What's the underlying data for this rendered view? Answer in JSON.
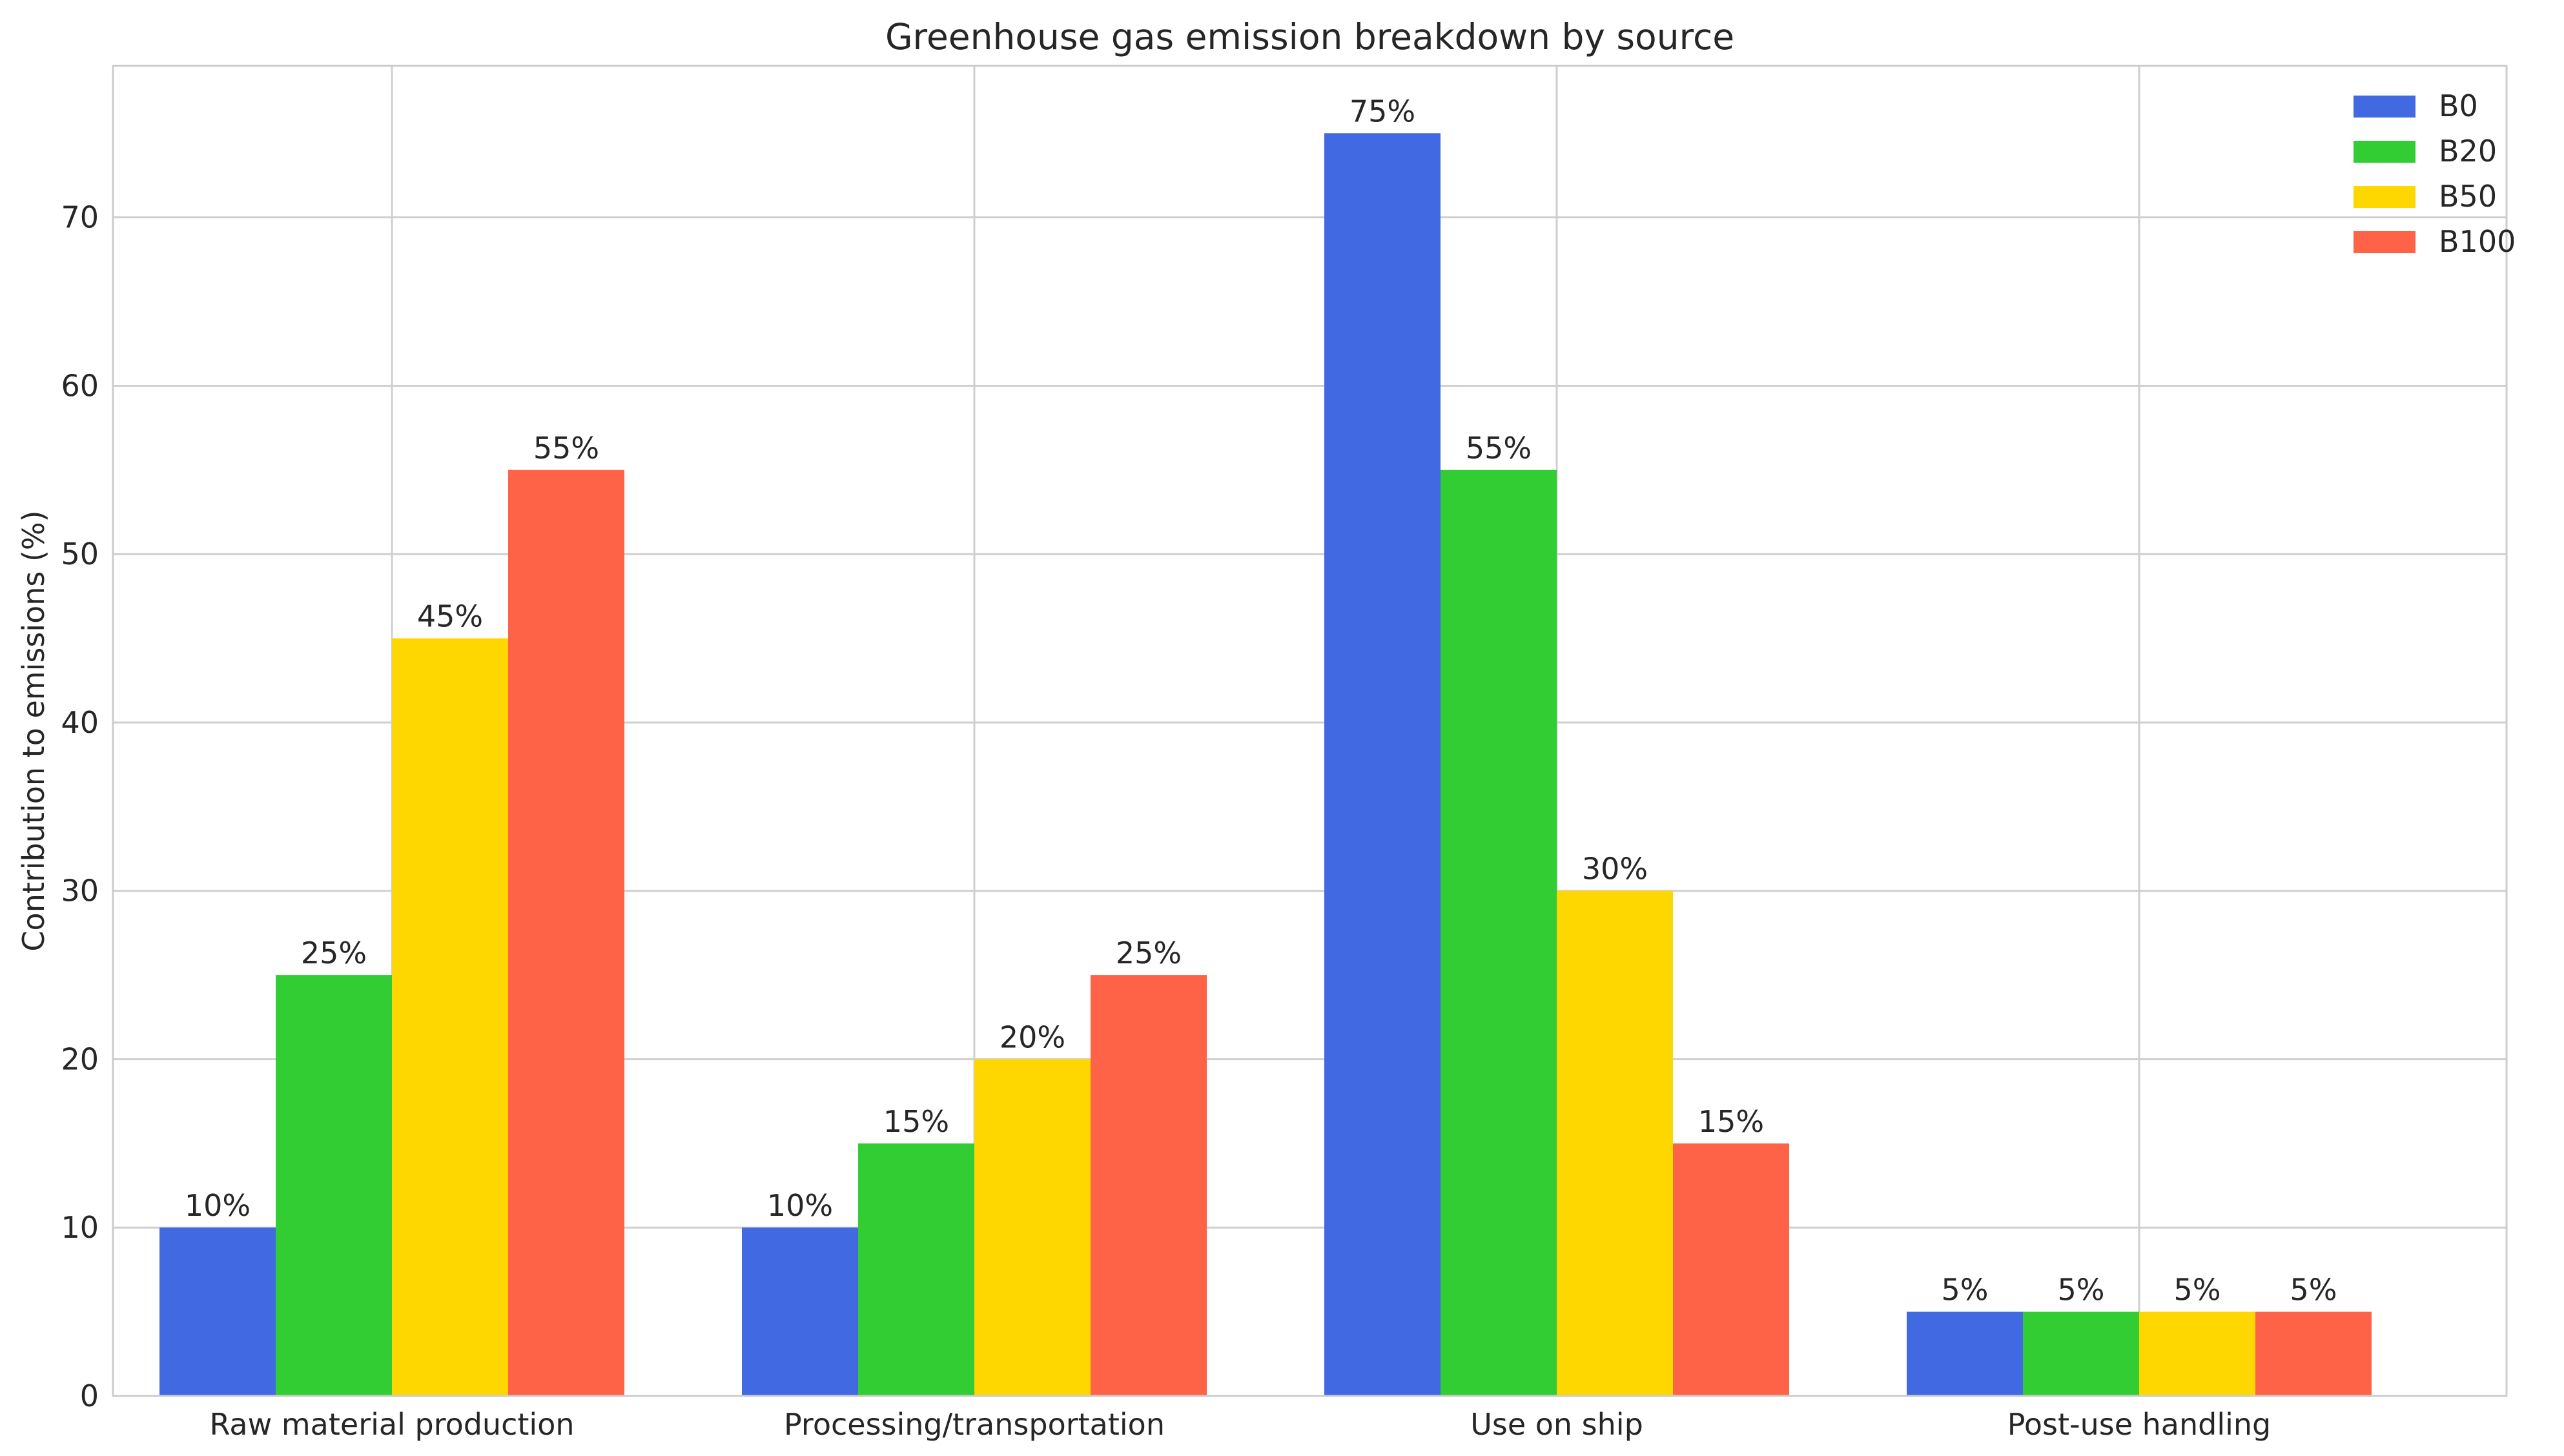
{
  "chart_data": {
    "type": "bar",
    "title": "Greenhouse gas emission breakdown by source",
    "xlabel": "",
    "ylabel": "Contribution to emissions (%)",
    "ylim": [
      0,
      79
    ],
    "yticks": [
      0,
      10,
      20,
      30,
      40,
      50,
      60,
      70
    ],
    "grid": true,
    "legend_position": "top-right",
    "categories": [
      "Raw material production",
      "Processing/transportation",
      "Use on ship",
      "Post-use handling"
    ],
    "series": [
      {
        "name": "B0",
        "color": "#4169e1",
        "values": [
          10,
          10,
          75,
          5
        ],
        "labels": [
          "10%",
          "10%",
          "75%",
          "5%"
        ]
      },
      {
        "name": "B20",
        "color": "#32cd32",
        "values": [
          25,
          15,
          55,
          5
        ],
        "labels": [
          "25%",
          "15%",
          "55%",
          "5%"
        ]
      },
      {
        "name": "B50",
        "color": "#ffd700",
        "values": [
          45,
          20,
          30,
          5
        ],
        "labels": [
          "45%",
          "20%",
          "30%",
          "5%"
        ]
      },
      {
        "name": "B100",
        "color": "#ff6347",
        "values": [
          55,
          25,
          15,
          5
        ],
        "labels": [
          "55%",
          "25%",
          "15%",
          "5%"
        ]
      }
    ]
  }
}
